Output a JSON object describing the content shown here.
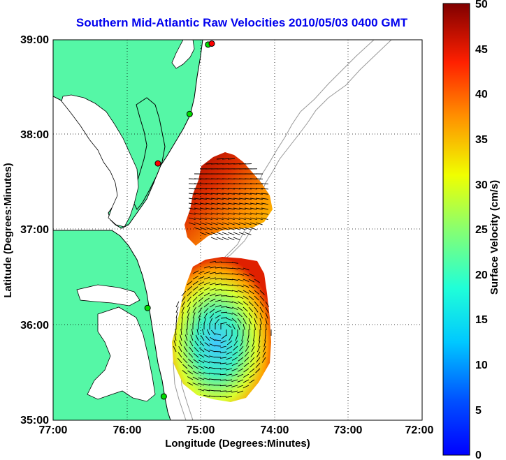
{
  "title": "Southern Mid-Atlantic Raw Velocities 2010/05/03 0400 GMT",
  "x_axis": {
    "label": "Longitude (Degrees:Minutes)",
    "ticks": [
      "77:00",
      "76:00",
      "75:00",
      "74:00",
      "73:00",
      "72:00"
    ]
  },
  "y_axis": {
    "label": "Latitude (Degrees:Minutes)",
    "ticks": [
      "39:00",
      "38:00",
      "37:00",
      "36:00",
      "35:00"
    ]
  },
  "colorbar": {
    "label": "Surface Velocity (cm/s)",
    "ticks": [
      "50",
      "45",
      "40",
      "35",
      "30",
      "25",
      "20",
      "15",
      "10",
      "5",
      "0"
    ],
    "min": 0,
    "max": 50,
    "colormap": "jet"
  },
  "colors": {
    "land": "#55f7a6",
    "water": "#ffffff",
    "coastline": "#000000",
    "bathymetry": "#999999",
    "title": "#0000ee",
    "grid": "#000000"
  },
  "map_extent": {
    "lon_range": [
      -77,
      -72
    ],
    "lat_range": [
      35,
      39
    ]
  },
  "grid": "dotted",
  "stations": [
    {
      "status": "online",
      "lon": -74.9,
      "lat": 38.95
    },
    {
      "status": "online",
      "lon": -75.15,
      "lat": 38.22
    },
    {
      "status": "offline",
      "lon": -75.58,
      "lat": 37.7
    },
    {
      "status": "online",
      "lon": -75.72,
      "lat": 36.18
    },
    {
      "status": "online",
      "lon": -75.5,
      "lat": 35.25
    },
    {
      "status": "offline",
      "lon": -74.85,
      "lat": 38.96
    }
  ],
  "station_colors": {
    "online": "#00dd00",
    "offline": "#ff0000"
  }
}
